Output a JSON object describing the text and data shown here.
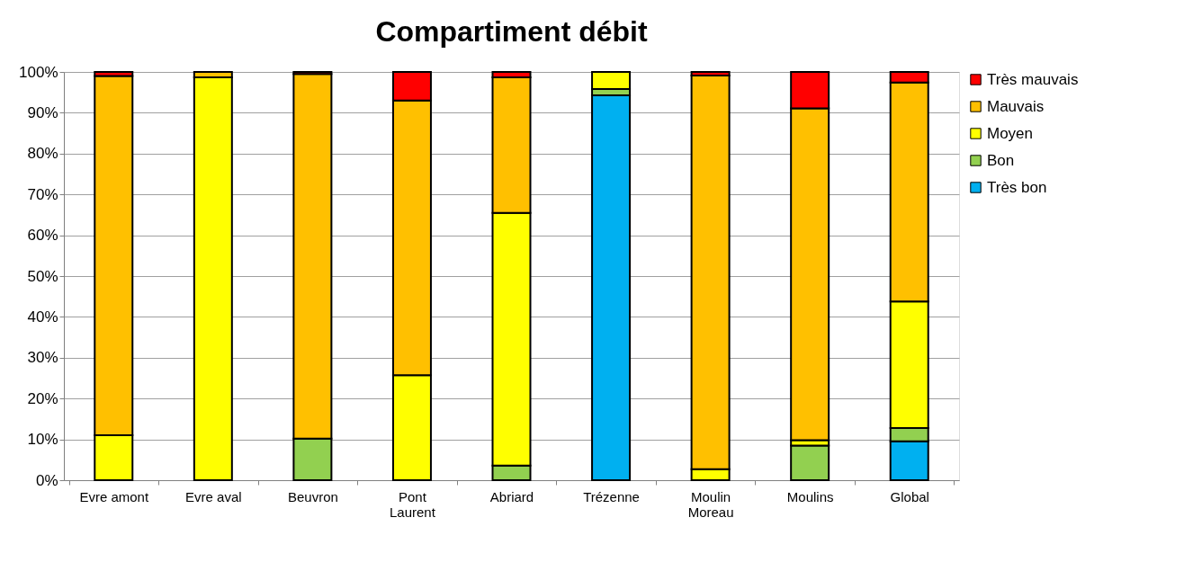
{
  "chart_data": {
    "type": "bar",
    "title": "Compartiment débit",
    "stacked": true,
    "categories": [
      "Evre amont",
      "Evre aval",
      "Beuvron",
      "Pont Laurent",
      "Abriard",
      "Trézenne",
      "Moulin Moreau",
      "Moulins",
      "Global"
    ],
    "series": [
      {
        "name": "Très bon",
        "color": "#00b0f0",
        "values": [
          null,
          null,
          null,
          null,
          null,
          94.3,
          null,
          null,
          9.5
        ]
      },
      {
        "name": "Bon",
        "color": "#92d050",
        "values": [
          null,
          null,
          10.2,
          null,
          3.6,
          1.5,
          null,
          8.5,
          3.3
        ]
      },
      {
        "name": "Moyen",
        "color": "#ffff00",
        "values": [
          11,
          98.7,
          null,
          25.7,
          61.9,
          4.2,
          2.7,
          1.3,
          31
        ]
      },
      {
        "name": "Mauvais",
        "color": "#ffc000",
        "values": [
          88,
          1.3,
          89.3,
          67.3,
          33.2,
          null,
          96.4,
          81.3,
          53.6
        ]
      },
      {
        "name": "Très mauvais",
        "color": "#ff0000",
        "values": [
          1,
          null,
          0.5,
          7,
          1.3,
          null,
          0.9,
          8.9,
          2.6
        ]
      }
    ],
    "ylim": [
      0,
      100
    ],
    "yticks": [
      {
        "value": 0,
        "label": "0%"
      },
      {
        "value": 10,
        "label": "10%"
      },
      {
        "value": 20,
        "label": "20%"
      },
      {
        "value": 30,
        "label": "30%"
      },
      {
        "value": 40,
        "label": "40%"
      },
      {
        "value": 50,
        "label": "50%"
      },
      {
        "value": 60,
        "label": "60%"
      },
      {
        "value": 70,
        "label": "70%"
      },
      {
        "value": 80,
        "label": "80%"
      },
      {
        "value": 90,
        "label": "90%"
      },
      {
        "value": 100,
        "label": "100%"
      }
    ],
    "grid": "y",
    "legend": "right"
  }
}
